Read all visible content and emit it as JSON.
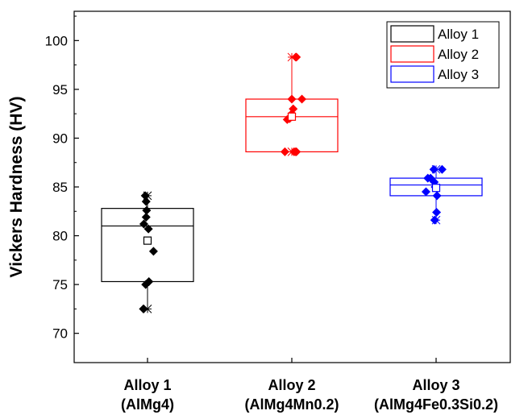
{
  "chart_data": {
    "type": "box",
    "title": "",
    "xlabel": "",
    "ylabel": "Vickers Hardness (HV)",
    "ylim": [
      67,
      103
    ],
    "yticks": [
      70,
      75,
      80,
      85,
      90,
      95,
      100
    ],
    "grid": false,
    "legend": {
      "placement": "top-right",
      "entries": [
        "Alloy 1",
        "Alloy 2",
        "Alloy 3"
      ]
    },
    "categories": [
      {
        "line1": "Alloy 1",
        "line2": "(AlMg4)"
      },
      {
        "line1": "Alloy 2",
        "line2": "(AlMg4Mn0.2)"
      },
      {
        "line1": "Alloy 3",
        "line2": "(AlMg4Fe0.3Si0.2)"
      }
    ],
    "series": [
      {
        "name": "Alloy 1",
        "color": "#000000",
        "box": {
          "q1": 75.3,
          "median": 81.0,
          "q3": 82.8,
          "mean": 79.5,
          "min": 72.5,
          "max": 84.1
        },
        "points": [
          {
            "x": -0.05,
            "y": 84.1
          },
          {
            "x": -0.03,
            "y": 83.5
          },
          {
            "x": -0.02,
            "y": 82.6
          },
          {
            "x": -0.03,
            "y": 81.9
          },
          {
            "x": -0.08,
            "y": 81.2
          },
          {
            "x": 0.02,
            "y": 80.7
          },
          {
            "x": 0.13,
            "y": 78.4
          },
          {
            "x": 0.03,
            "y": 75.3
          },
          {
            "x": -0.04,
            "y": 75.0
          },
          {
            "x": -0.09,
            "y": 72.5
          }
        ]
      },
      {
        "name": "Alloy 2",
        "color": "#ff0000",
        "box": {
          "q1": 88.6,
          "median": 92.2,
          "q3": 94.0,
          "mean": 92.2,
          "min": 88.6,
          "max": 98.3
        },
        "points": [
          {
            "x": 0.1,
            "y": 98.3
          },
          {
            "x": 0.0,
            "y": 94.0
          },
          {
            "x": 0.22,
            "y": 94.0
          },
          {
            "x": 0.03,
            "y": 93.0
          },
          {
            "x": 0.0,
            "y": 92.5
          },
          {
            "x": -0.05,
            "y": 92.0
          },
          {
            "x": -0.1,
            "y": 91.9
          },
          {
            "x": 0.0,
            "y": 92.2
          },
          {
            "x": -0.15,
            "y": 88.6
          },
          {
            "x": 0.05,
            "y": 88.6
          },
          {
            "x": 0.1,
            "y": 88.6
          }
        ]
      },
      {
        "name": "Alloy 3",
        "color": "#0000ff",
        "box": {
          "q1": 84.1,
          "median": 85.2,
          "q3": 85.9,
          "mean": 84.9,
          "min": 81.6,
          "max": 86.8
        },
        "points": [
          {
            "x": -0.05,
            "y": 86.8
          },
          {
            "x": 0.13,
            "y": 86.8
          },
          {
            "x": -0.18,
            "y": 85.9
          },
          {
            "x": -0.12,
            "y": 85.9
          },
          {
            "x": -0.04,
            "y": 85.5
          },
          {
            "x": -0.02,
            "y": 85.0
          },
          {
            "x": -0.22,
            "y": 84.5
          },
          {
            "x": 0.02,
            "y": 84.1
          },
          {
            "x": 0.01,
            "y": 82.4
          },
          {
            "x": -0.03,
            "y": 81.6
          }
        ]
      }
    ]
  }
}
